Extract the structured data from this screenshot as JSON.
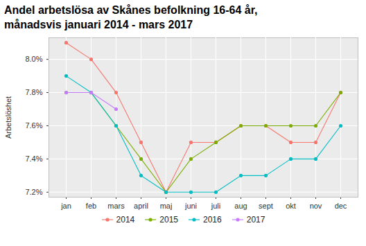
{
  "chart_data": {
    "type": "line",
    "title": "Andel arbetslösa av Skånes befolkning 16-64 år,\nmånadsvis januari 2014 - mars 2017",
    "y_label": "Arbetslöshet",
    "categories": [
      "jan",
      "feb",
      "mars",
      "april",
      "maj",
      "juni",
      "juli",
      "aug",
      "sept",
      "okt",
      "nov",
      "dec"
    ],
    "series": [
      {
        "name": "2014",
        "color": "#F8766D",
        "values": [
          8.1,
          8.0,
          7.8,
          7.5,
          7.2,
          7.5,
          7.5,
          7.6,
          7.6,
          7.5,
          7.5,
          7.8
        ]
      },
      {
        "name": "2015",
        "color": "#7CAE00",
        "values": [
          7.8,
          7.8,
          7.6,
          7.4,
          7.2,
          7.4,
          7.5,
          7.6,
          7.6,
          7.6,
          7.6,
          7.8
        ]
      },
      {
        "name": "2016",
        "color": "#00BFC4",
        "values": [
          7.9,
          7.8,
          7.6,
          7.3,
          7.2,
          7.2,
          7.2,
          7.3,
          7.3,
          7.4,
          7.4,
          7.6
        ]
      },
      {
        "name": "2017",
        "color": "#C77CFF",
        "values": [
          7.8,
          7.8,
          7.7,
          null,
          null,
          null,
          null,
          null,
          null,
          null,
          null,
          null
        ]
      }
    ],
    "ylim": [
      7.17,
      8.13
    ],
    "yticks": [
      {
        "value": 7.2,
        "label": "7.2%"
      },
      {
        "value": 7.4,
        "label": "7.4%"
      },
      {
        "value": 7.6,
        "label": "7.6%"
      },
      {
        "value": 7.8,
        "label": "7.8%"
      },
      {
        "value": 8.0,
        "label": "8.0%"
      }
    ],
    "grid": true,
    "legend": "bottom",
    "marker": "circle"
  }
}
